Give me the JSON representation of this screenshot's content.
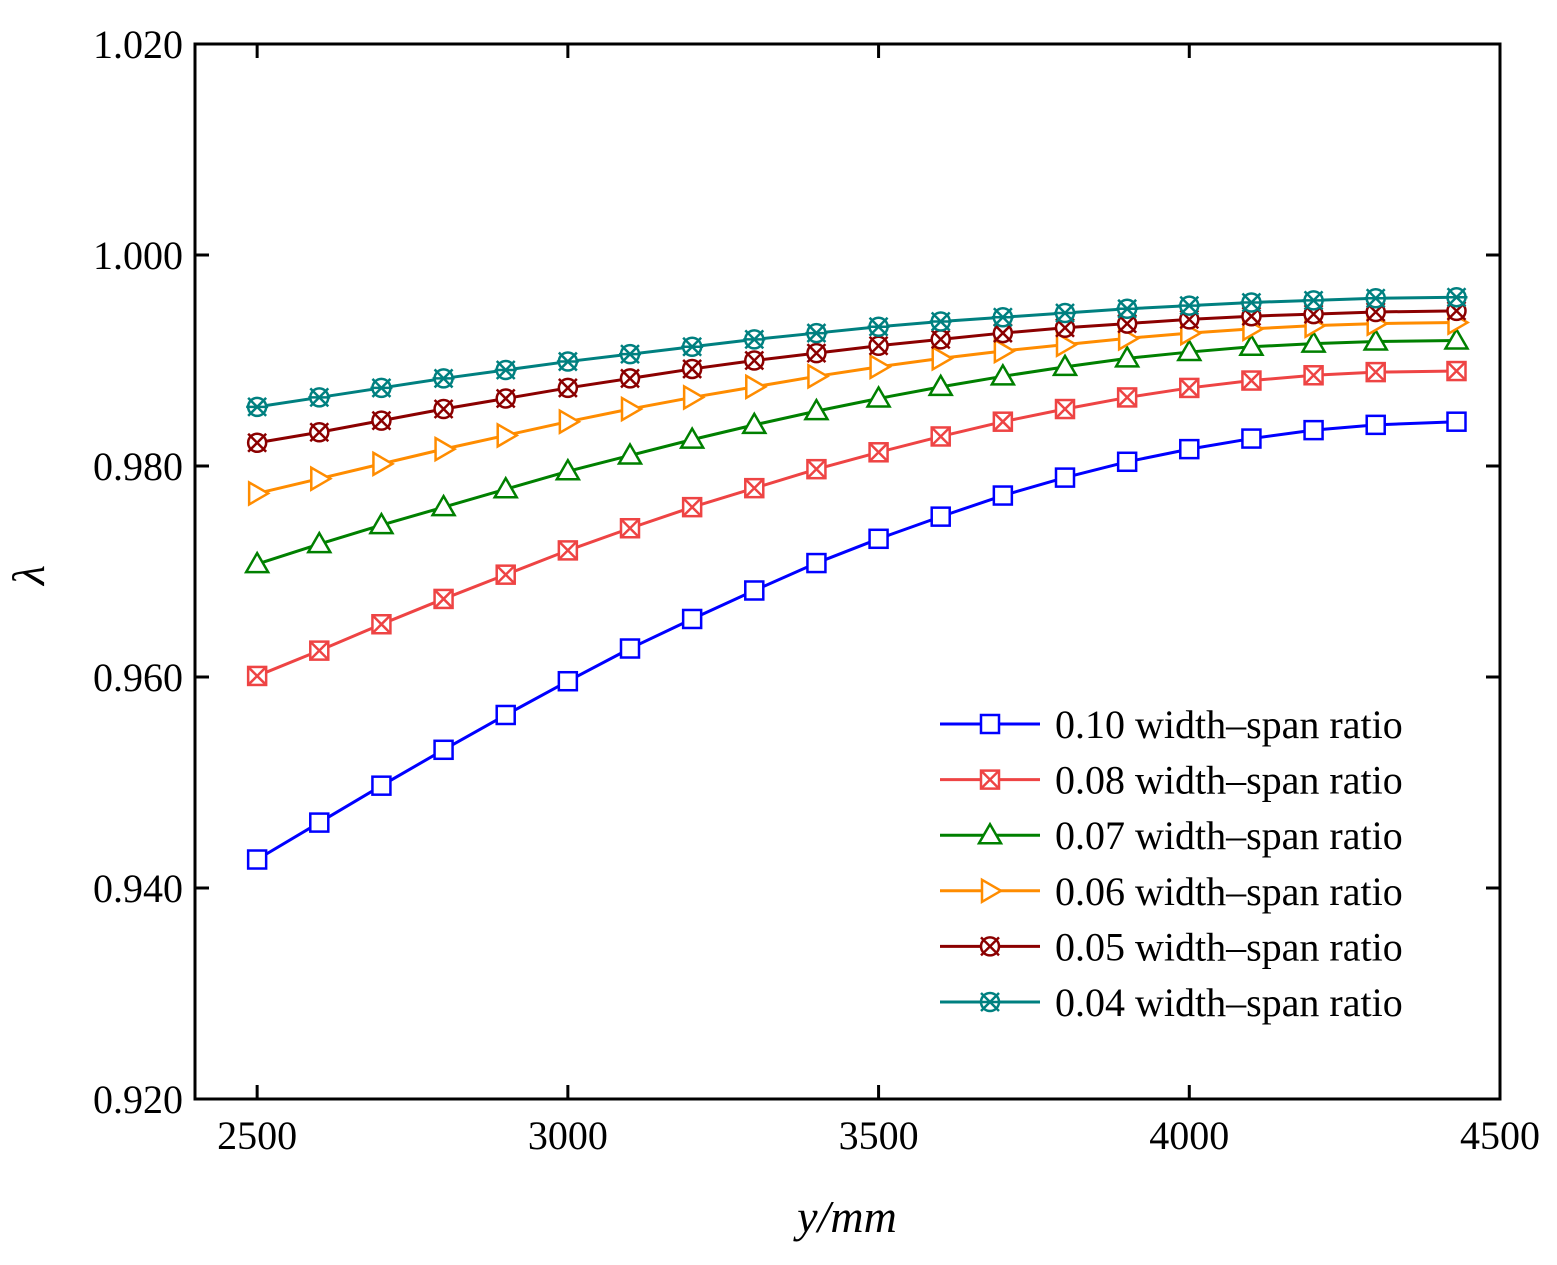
{
  "chart_data": {
    "type": "line",
    "xlabel": "y/mm",
    "ylabel": "λ",
    "xlim": [
      2400,
      4500
    ],
    "ylim": [
      0.92,
      1.02
    ],
    "x_ticks": [
      "2500",
      "3000",
      "3500",
      "4000",
      "4500"
    ],
    "y_ticks": [
      "0.920",
      "0.940",
      "0.960",
      "0.980",
      "1.000",
      "1.020"
    ],
    "grid": false,
    "legend_position": "bottom-right",
    "x": [
      2500,
      2600,
      2700,
      2800,
      2900,
      3000,
      3100,
      3200,
      3300,
      3400,
      3500,
      3600,
      3700,
      3800,
      3900,
      4000,
      4100,
      4200,
      4300,
      4430
    ],
    "series": [
      {
        "name": "0.10 width–span ratio",
        "color": "#0000ff",
        "marker": "square",
        "values": [
          0.9427,
          0.9462,
          0.9497,
          0.9531,
          0.9564,
          0.9596,
          0.9627,
          0.9655,
          0.9682,
          0.9708,
          0.9731,
          0.9752,
          0.9772,
          0.9789,
          0.9804,
          0.9816,
          0.9826,
          0.9834,
          0.9839,
          0.9842
        ]
      },
      {
        "name": "0.08 width–span ratio",
        "color": "#ee4444",
        "marker": "x-square",
        "values": [
          0.9601,
          0.9625,
          0.965,
          0.9674,
          0.9697,
          0.972,
          0.9741,
          0.9761,
          0.9779,
          0.9797,
          0.9813,
          0.9828,
          0.9842,
          0.9854,
          0.9865,
          0.9874,
          0.9881,
          0.9886,
          0.9889,
          0.989
        ]
      },
      {
        "name": "0.07 width–span ratio",
        "color": "#008000",
        "marker": "triangle",
        "values": [
          0.9707,
          0.9726,
          0.9744,
          0.9761,
          0.9778,
          0.9795,
          0.981,
          0.9825,
          0.9839,
          0.9852,
          0.9864,
          0.9875,
          0.9885,
          0.9894,
          0.9902,
          0.9908,
          0.9913,
          0.9916,
          0.9918,
          0.9919
        ]
      },
      {
        "name": "0.06 width–span ratio",
        "color": "#ff8c00",
        "marker": "triangle-right",
        "values": [
          0.9774,
          0.9788,
          0.9802,
          0.9816,
          0.9829,
          0.9842,
          0.9854,
          0.9865,
          0.9875,
          0.9885,
          0.9894,
          0.9902,
          0.9909,
          0.9915,
          0.9921,
          0.9926,
          0.993,
          0.9933,
          0.9935,
          0.9936
        ]
      },
      {
        "name": "0.05 width–span ratio",
        "color": "#8b0000",
        "marker": "x-circle",
        "values": [
          0.9822,
          0.9832,
          0.9843,
          0.9854,
          0.9864,
          0.9874,
          0.9883,
          0.9892,
          0.99,
          0.9907,
          0.9914,
          0.992,
          0.9926,
          0.9931,
          0.9935,
          0.9939,
          0.9942,
          0.9944,
          0.9946,
          0.9947
        ]
      },
      {
        "name": "0.04 width–span ratio",
        "color": "#008080",
        "marker": "star",
        "values": [
          0.9856,
          0.9865,
          0.9874,
          0.9883,
          0.9891,
          0.9899,
          0.9906,
          0.9913,
          0.992,
          0.9926,
          0.9932,
          0.9937,
          0.9941,
          0.9945,
          0.9949,
          0.9952,
          0.9955,
          0.9957,
          0.9959,
          0.996
        ]
      }
    ]
  }
}
